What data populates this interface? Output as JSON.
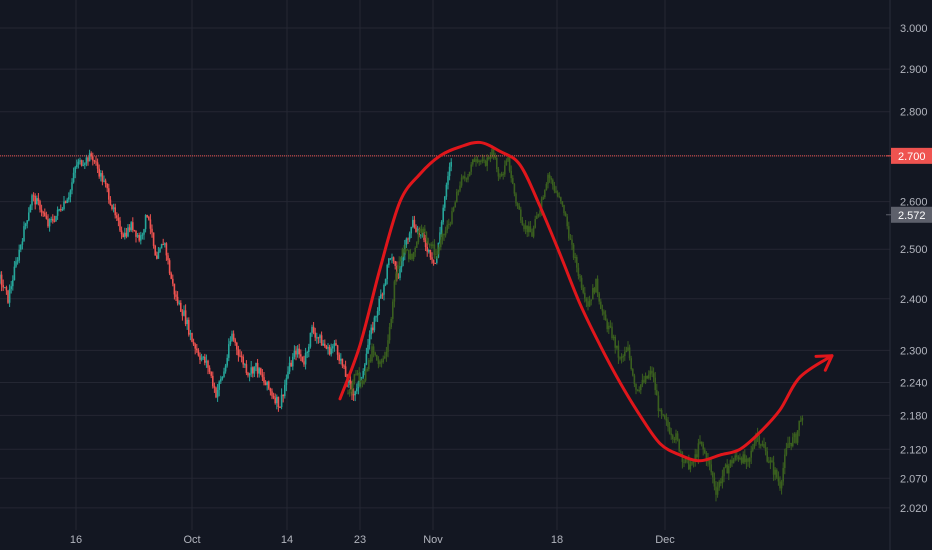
{
  "chart_data": {
    "type": "line",
    "title": "",
    "xlabel": "",
    "ylabel": "",
    "scale": "log",
    "x_tick_labels": [
      "16",
      "Oct",
      "14",
      "23",
      "Nov",
      "18",
      "Dec"
    ],
    "y_ticks": [
      2.02,
      2.07,
      2.12,
      2.18,
      2.24,
      2.3,
      2.4,
      2.5,
      2.6,
      2.7,
      2.8,
      2.9,
      3.0
    ],
    "y_tick_labels": [
      "2.020",
      "2.070",
      "2.120",
      "2.180",
      "2.240",
      "2.300",
      "2.400",
      "2.500",
      "2.600",
      "2.700",
      "2.800",
      "2.900",
      "3.000"
    ],
    "ylim": [
      2.0,
      3.05
    ],
    "grid": true,
    "colors": {
      "background": "#131722",
      "grid": "#242733",
      "candle_up": "#26a69a",
      "candle_down": "#ef5350",
      "projection": "#3a5f1f",
      "curve": "#e0161b",
      "resistance_line": "#ef5350",
      "last_price_badge": "#5d606b",
      "resistance_badge": "#ef5350"
    },
    "resistance_level": 2.7,
    "resistance_label": "2.700",
    "last_price": 2.572,
    "last_price_label": "2.572",
    "series": [
      {
        "role": "price",
        "points": [
          [
            0,
            2.44
          ],
          [
            8,
            2.4
          ],
          [
            16,
            2.47
          ],
          [
            24,
            2.54
          ],
          [
            32,
            2.61
          ],
          [
            40,
            2.59
          ],
          [
            48,
            2.55
          ],
          [
            56,
            2.57
          ],
          [
            64,
            2.6
          ],
          [
            70,
            2.62
          ],
          [
            76,
            2.68
          ],
          [
            84,
            2.69
          ],
          [
            92,
            2.7
          ],
          [
            100,
            2.66
          ],
          [
            108,
            2.62
          ],
          [
            116,
            2.56
          ],
          [
            124,
            2.53
          ],
          [
            132,
            2.55
          ],
          [
            140,
            2.52
          ],
          [
            148,
            2.58
          ],
          [
            156,
            2.47
          ],
          [
            164,
            2.52
          ],
          [
            170,
            2.45
          ],
          [
            176,
            2.4
          ],
          [
            184,
            2.37
          ],
          [
            192,
            2.32
          ],
          [
            200,
            2.29
          ],
          [
            208,
            2.27
          ],
          [
            216,
            2.22
          ],
          [
            224,
            2.26
          ],
          [
            232,
            2.33
          ],
          [
            240,
            2.29
          ],
          [
            248,
            2.26
          ],
          [
            256,
            2.27
          ],
          [
            264,
            2.24
          ],
          [
            272,
            2.22
          ],
          [
            280,
            2.2
          ],
          [
            288,
            2.26
          ],
          [
            296,
            2.3
          ],
          [
            304,
            2.28
          ],
          [
            312,
            2.34
          ],
          [
            320,
            2.32
          ],
          [
            328,
            2.3
          ],
          [
            336,
            2.31
          ],
          [
            344,
            2.26
          ],
          [
            352,
            2.22
          ],
          [
            360,
            2.24
          ],
          [
            368,
            2.31
          ],
          [
            376,
            2.37
          ],
          [
            384,
            2.43
          ],
          [
            390,
            2.49
          ],
          [
            398,
            2.44
          ],
          [
            404,
            2.5
          ],
          [
            412,
            2.56
          ],
          [
            420,
            2.53
          ],
          [
            428,
            2.5
          ],
          [
            436,
            2.47
          ],
          [
            444,
            2.6
          ],
          [
            452,
            2.7
          ]
        ]
      },
      {
        "role": "projection",
        "points": [
          [
            348,
            2.22
          ],
          [
            356,
            2.26
          ],
          [
            364,
            2.24
          ],
          [
            372,
            2.3
          ],
          [
            380,
            2.27
          ],
          [
            388,
            2.31
          ],
          [
            396,
            2.46
          ],
          [
            404,
            2.5
          ],
          [
            412,
            2.48
          ],
          [
            420,
            2.55
          ],
          [
            428,
            2.52
          ],
          [
            436,
            2.49
          ],
          [
            444,
            2.53
          ],
          [
            452,
            2.57
          ],
          [
            460,
            2.64
          ],
          [
            468,
            2.66
          ],
          [
            476,
            2.7
          ],
          [
            484,
            2.68
          ],
          [
            492,
            2.71
          ],
          [
            500,
            2.65
          ],
          [
            508,
            2.69
          ],
          [
            516,
            2.6
          ],
          [
            524,
            2.55
          ],
          [
            532,
            2.53
          ],
          [
            540,
            2.59
          ],
          [
            548,
            2.66
          ],
          [
            556,
            2.62
          ],
          [
            564,
            2.58
          ],
          [
            572,
            2.5
          ],
          [
            580,
            2.44
          ],
          [
            588,
            2.39
          ],
          [
            596,
            2.43
          ],
          [
            604,
            2.36
          ],
          [
            612,
            2.33
          ],
          [
            620,
            2.28
          ],
          [
            628,
            2.3
          ],
          [
            636,
            2.23
          ],
          [
            644,
            2.24
          ],
          [
            652,
            2.26
          ],
          [
            660,
            2.18
          ],
          [
            668,
            2.16
          ],
          [
            676,
            2.14
          ],
          [
            684,
            2.1
          ],
          [
            692,
            2.09
          ],
          [
            700,
            2.13
          ],
          [
            708,
            2.1
          ],
          [
            716,
            2.05
          ],
          [
            724,
            2.08
          ],
          [
            732,
            2.1
          ],
          [
            740,
            2.11
          ],
          [
            748,
            2.09
          ],
          [
            756,
            2.15
          ],
          [
            764,
            2.12
          ],
          [
            772,
            2.09
          ],
          [
            780,
            2.06
          ],
          [
            788,
            2.13
          ],
          [
            796,
            2.14
          ],
          [
            802,
            2.19
          ],
          [
            804,
            2.07
          ]
        ]
      },
      {
        "role": "curve",
        "points": [
          [
            340,
            2.21
          ],
          [
            360,
            2.31
          ],
          [
            380,
            2.46
          ],
          [
            400,
            2.6
          ],
          [
            420,
            2.66
          ],
          [
            440,
            2.7
          ],
          [
            460,
            2.72
          ],
          [
            480,
            2.73
          ],
          [
            500,
            2.71
          ],
          [
            520,
            2.68
          ],
          [
            540,
            2.59
          ],
          [
            560,
            2.49
          ],
          [
            580,
            2.39
          ],
          [
            600,
            2.31
          ],
          [
            620,
            2.24
          ],
          [
            640,
            2.18
          ],
          [
            660,
            2.13
          ],
          [
            680,
            2.11
          ],
          [
            700,
            2.1
          ],
          [
            720,
            2.11
          ],
          [
            740,
            2.12
          ],
          [
            760,
            2.15
          ],
          [
            780,
            2.19
          ],
          [
            800,
            2.25
          ],
          [
            832,
            2.29
          ]
        ]
      }
    ]
  }
}
